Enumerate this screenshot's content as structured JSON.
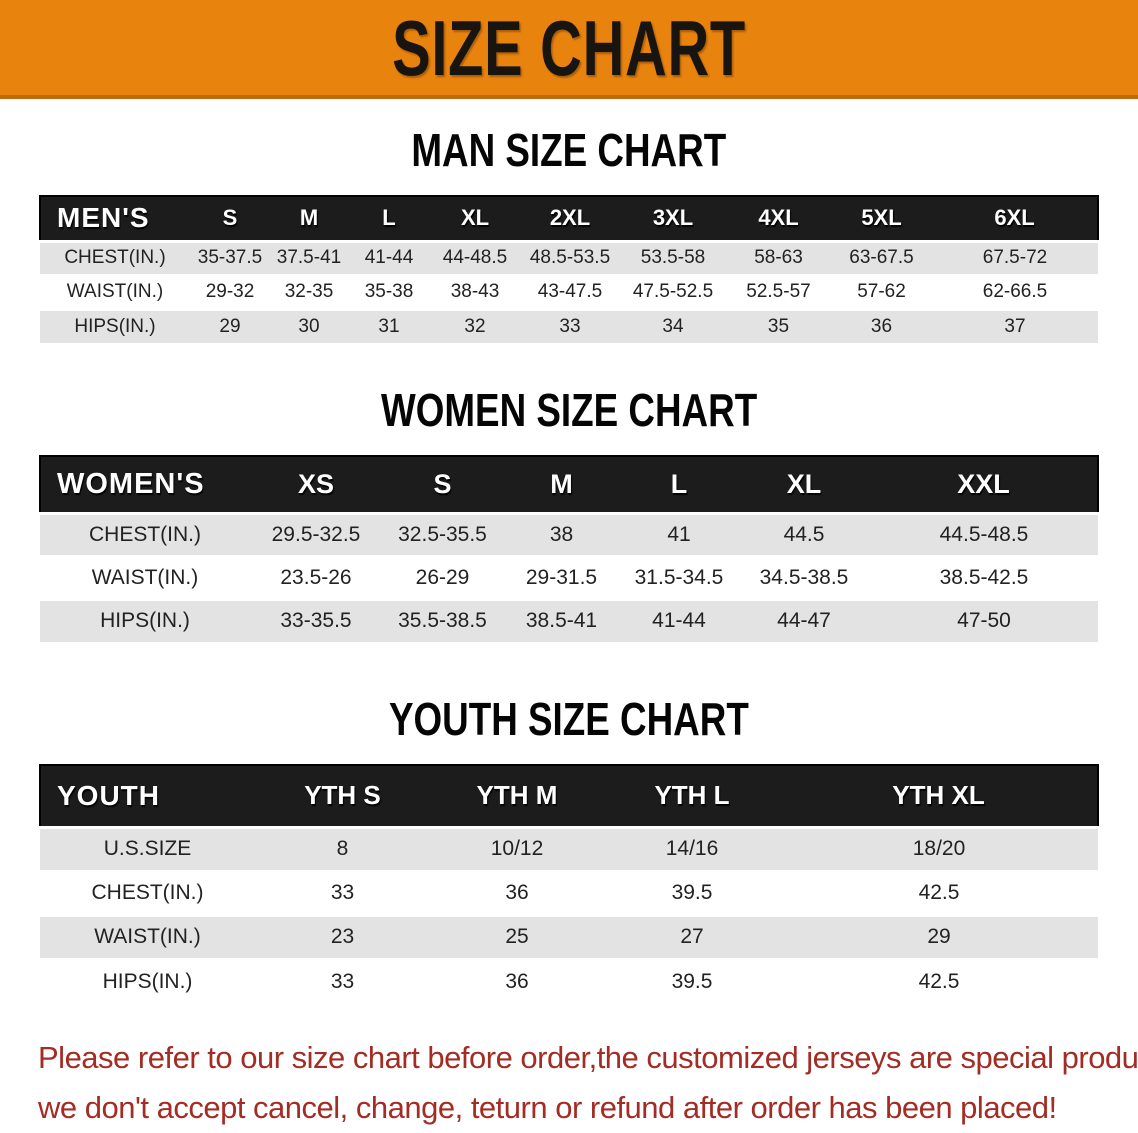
{
  "banner": {
    "title": "SIZE CHART",
    "background_color": "#e8830e"
  },
  "sections": [
    {
      "id": "men",
      "title": "MAN SIZE CHART",
      "table": {
        "header_label": "MEN'S",
        "sizes": [
          "S",
          "M",
          "L",
          "XL",
          "2XL",
          "3XL",
          "4XL",
          "5XL",
          "6XL"
        ],
        "rows": [
          {
            "label": "CHEST(IN.)",
            "values": [
              "35-37.5",
              "37.5-41",
              "41-44",
              "44-48.5",
              "48.5-53.5",
              "53.5-58",
              "58-63",
              "63-67.5",
              "67.5-72"
            ]
          },
          {
            "label": "WAIST(IN.)",
            "values": [
              "29-32",
              "32-35",
              "35-38",
              "38-43",
              "43-47.5",
              "47.5-52.5",
              "52.5-57",
              "57-62",
              "62-66.5"
            ]
          },
          {
            "label": "HIPS(IN.)",
            "values": [
              "29",
              "30",
              "31",
              "32",
              "33",
              "34",
              "35",
              "36",
              "37"
            ]
          }
        ]
      }
    },
    {
      "id": "women",
      "title": "WOMEN SIZE CHART",
      "table": {
        "header_label": "WOMEN'S",
        "sizes": [
          "XS",
          "S",
          "M",
          "L",
          "XL",
          "XXL"
        ],
        "rows": [
          {
            "label": "CHEST(IN.)",
            "values": [
              "29.5-32.5",
              "32.5-35.5",
              "38",
              "41",
              "44.5",
              "44.5-48.5"
            ]
          },
          {
            "label": "WAIST(IN.)",
            "values": [
              "23.5-26",
              "26-29",
              "29-31.5",
              "31.5-34.5",
              "34.5-38.5",
              "38.5-42.5"
            ]
          },
          {
            "label": "HIPS(IN.)",
            "values": [
              "33-35.5",
              "35.5-38.5",
              "38.5-41",
              "41-44",
              "44-47",
              "47-50"
            ]
          }
        ]
      }
    },
    {
      "id": "youth",
      "title": "YOUTH SIZE CHART",
      "table": {
        "header_label": "YOUTH",
        "sizes": [
          "YTH S",
          "YTH M",
          "YTH L",
          "YTH XL"
        ],
        "rows": [
          {
            "label": "U.S.SIZE",
            "values": [
              "8",
              "10/12",
              "14/16",
              "18/20"
            ]
          },
          {
            "label": "CHEST(IN.)",
            "values": [
              "33",
              "36",
              "39.5",
              "42.5"
            ]
          },
          {
            "label": "WAIST(IN.)",
            "values": [
              "23",
              "25",
              "27",
              "29"
            ]
          },
          {
            "label": "HIPS(IN.)",
            "values": [
              "33",
              "36",
              "39.5",
              "42.5"
            ]
          }
        ]
      }
    }
  ],
  "disclaimer": {
    "line1": "Please refer to our size chart before order,the customized jerseys are special products,",
    "line2": "we don't accept cancel, change, teturn or refund after order has been placed!",
    "text_color": "#a32c24"
  }
}
